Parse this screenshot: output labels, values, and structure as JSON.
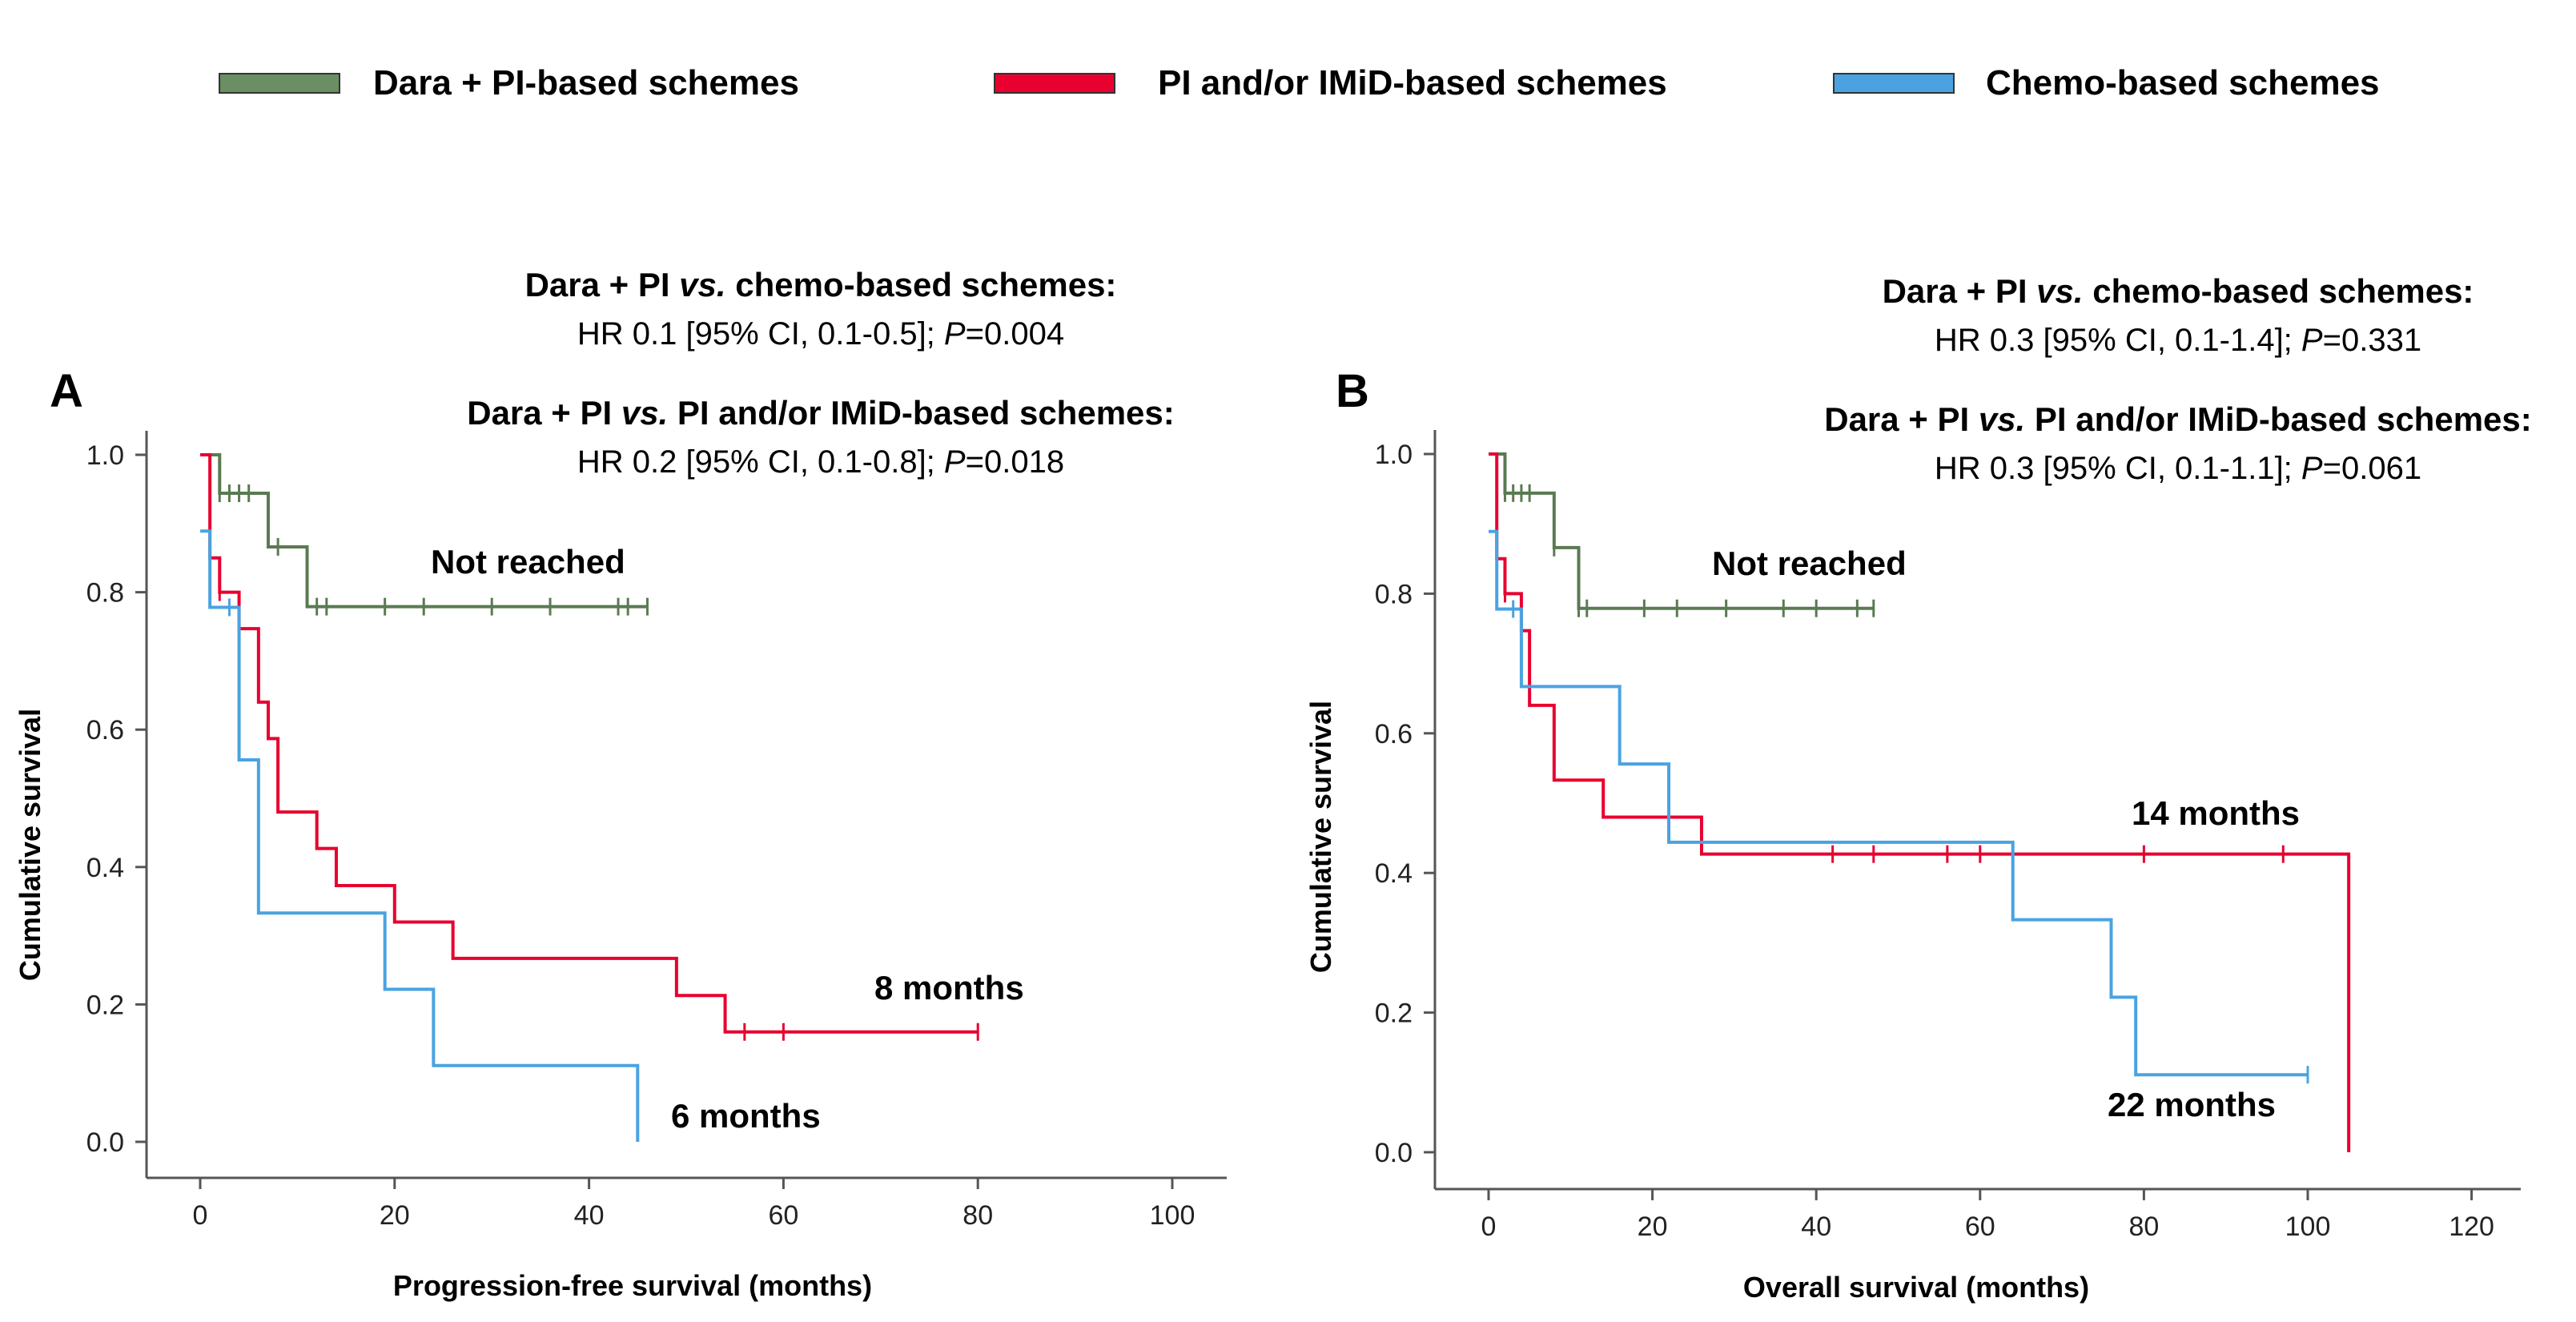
{
  "colors": {
    "dara": "#5a7a52",
    "dara_fill": "#6b8e62",
    "pi": "#e8002f",
    "chemo": "#4aa3e0",
    "axis": "#555555"
  },
  "legend": [
    {
      "key": "dara",
      "label": "Dara + PI-based schemes"
    },
    {
      "key": "pi",
      "label": "PI and/or IMiD-based schemes"
    },
    {
      "key": "chemo",
      "label": "Chemo-based schemes"
    }
  ],
  "chart_data": [
    {
      "type": "line",
      "subtype": "kaplan-meier",
      "panel": "A",
      "xlabel": "Progression-free survival (months)",
      "ylabel": "Cumulative survival",
      "xlim": [
        0,
        100
      ],
      "ylim": [
        0,
        1.0
      ],
      "xticks": [
        "0",
        "20",
        "40",
        "60",
        "80",
        "100"
      ],
      "yticks": [
        "0.0",
        "0.2",
        "0.4",
        "0.6",
        "0.8",
        "1.0"
      ],
      "annotations": {
        "cmp1_title_pre": "Dara + PI ",
        "cmp1_title_vs": "vs.",
        "cmp1_title_post": " chemo-based schemes:",
        "cmp1_stat_pre": "HR 0.1 [95% CI, 0.1-0.5]; ",
        "cmp1_stat_p": "P",
        "cmp1_stat_post": "=0.004",
        "cmp2_title_pre": "Dara + PI ",
        "cmp2_title_vs": "vs.",
        "cmp2_title_post": " PI and/or IMiD-based schemes:",
        "cmp2_stat_pre": "HR 0.2 [95% CI, 0.1-0.8]; ",
        "cmp2_stat_p": "P",
        "cmp2_stat_post": "=0.018",
        "label_dara": "Not reached",
        "label_pi": "8 months",
        "label_chemo": "6 months"
      },
      "series": [
        {
          "name": "Dara + PI-based schemes",
          "key": "dara",
          "steps": [
            [
              0,
              1.0
            ],
            [
              2,
              0.944
            ],
            [
              7,
              0.866
            ],
            [
              11,
              0.779
            ],
            [
              46,
              0.779
            ]
          ],
          "censors": [
            2,
            3,
            4,
            5,
            8,
            12,
            13,
            19,
            23,
            30,
            36,
            43,
            44,
            46
          ]
        },
        {
          "name": "PI and/or IMiD-based schemes",
          "key": "pi",
          "steps": [
            [
              0,
              1.0
            ],
            [
              1,
              0.85
            ],
            [
              2,
              0.8
            ],
            [
              3,
              0.8
            ],
            [
              4,
              0.747
            ],
            [
              5,
              0.747
            ],
            [
              6,
              0.64
            ],
            [
              7,
              0.587
            ],
            [
              8,
              0.48
            ],
            [
              12,
              0.427
            ],
            [
              14,
              0.373
            ],
            [
              20,
              0.32
            ],
            [
              26,
              0.267
            ],
            [
              49,
              0.213
            ],
            [
              54,
              0.16
            ],
            [
              80,
              0.16
            ]
          ],
          "censors": [
            2,
            56,
            60,
            80
          ]
        },
        {
          "name": "Chemo-based schemes",
          "key": "chemo",
          "steps": [
            [
              0,
              0.889
            ],
            [
              1,
              0.778
            ],
            [
              4,
              0.556
            ],
            [
              6,
              0.333
            ],
            [
              19,
              0.222
            ],
            [
              24,
              0.111
            ],
            [
              45,
              0.0
            ]
          ],
          "censors": [
            3
          ]
        }
      ]
    },
    {
      "type": "line",
      "subtype": "kaplan-meier",
      "panel": "B",
      "xlabel": "Overall survival (months)",
      "ylabel": "Cumulative survival",
      "xlim": [
        0,
        120
      ],
      "ylim": [
        0,
        1.0
      ],
      "xticks": [
        "0",
        "20",
        "40",
        "60",
        "80",
        "100",
        "120"
      ],
      "yticks": [
        "0.0",
        "0.2",
        "0.4",
        "0.6",
        "0.8",
        "1.0"
      ],
      "annotations": {
        "cmp1_title_pre": "Dara + PI ",
        "cmp1_title_vs": "vs.",
        "cmp1_title_post": " chemo-based schemes:",
        "cmp1_stat_pre": "HR 0.3 [95% CI, 0.1-1.4]; ",
        "cmp1_stat_p": "P",
        "cmp1_stat_post": "=0.331",
        "cmp2_title_pre": "Dara + PI ",
        "cmp2_title_vs": "vs.",
        "cmp2_title_post": " PI and/or IMiD-based schemes:",
        "cmp2_stat_pre": "HR 0.3 [95% CI, 0.1-1.1]; ",
        "cmp2_stat_p": "P",
        "cmp2_stat_post": "=0.061",
        "label_dara": "Not reached",
        "label_pi": "14 months",
        "label_chemo": "22 months"
      },
      "series": [
        {
          "name": "Dara + PI-based schemes",
          "key": "dara",
          "steps": [
            [
              0,
              1.0
            ],
            [
              2,
              0.944
            ],
            [
              8,
              0.866
            ],
            [
              11,
              0.779
            ],
            [
              47,
              0.779
            ]
          ],
          "censors": [
            2,
            3,
            4,
            5,
            8,
            11,
            12,
            19,
            23,
            29,
            36,
            40,
            45,
            47
          ]
        },
        {
          "name": "PI and/or IMiD-based schemes",
          "key": "pi",
          "steps": [
            [
              0,
              1.0
            ],
            [
              1,
              0.85
            ],
            [
              2,
              0.8
            ],
            [
              3,
              0.8
            ],
            [
              4,
              0.747
            ],
            [
              5,
              0.64
            ],
            [
              8,
              0.533
            ],
            [
              14,
              0.48
            ],
            [
              26,
              0.427
            ],
            [
              105,
              0.427
            ],
            [
              105,
              0.0
            ]
          ],
          "censors": [
            2,
            42,
            47,
            56,
            60,
            80,
            97
          ]
        },
        {
          "name": "Chemo-based schemes",
          "key": "chemo",
          "steps": [
            [
              0,
              0.889
            ],
            [
              1,
              0.778
            ],
            [
              4,
              0.667
            ],
            [
              16,
              0.556
            ],
            [
              22,
              0.444
            ],
            [
              64,
              0.333
            ],
            [
              76,
              0.222
            ],
            [
              79,
              0.111
            ],
            [
              100,
              0.111
            ]
          ],
          "censors": [
            3,
            100
          ]
        }
      ]
    }
  ]
}
